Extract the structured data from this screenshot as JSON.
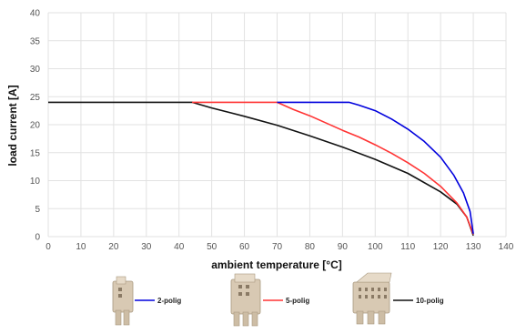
{
  "chart_data": {
    "type": "line",
    "title": "",
    "xlabel": "ambient temperature [°C]",
    "ylabel": "load current [A]",
    "xlim": [
      0,
      140
    ],
    "ylim": [
      0,
      40
    ],
    "x_ticks": [
      0,
      10,
      20,
      30,
      40,
      50,
      60,
      70,
      80,
      90,
      100,
      110,
      120,
      130,
      140
    ],
    "y_ticks": [
      0,
      5,
      10,
      15,
      20,
      25,
      30,
      35,
      40
    ],
    "grid": true,
    "legend_position": "bottom",
    "series": [
      {
        "name": "2-polig",
        "color": "#0000dd",
        "points": [
          [
            70,
            24
          ],
          [
            92,
            24
          ],
          [
            95,
            23.5
          ],
          [
            100,
            22.5
          ],
          [
            105,
            21.0
          ],
          [
            110,
            19.2
          ],
          [
            115,
            17.0
          ],
          [
            120,
            14.2
          ],
          [
            124,
            11.0
          ],
          [
            127,
            7.8
          ],
          [
            129,
            4.5
          ],
          [
            130,
            0.5
          ]
        ]
      },
      {
        "name": "5-polig",
        "color": "#ff3333",
        "points": [
          [
            44,
            24
          ],
          [
            70,
            24
          ],
          [
            75,
            22.7
          ],
          [
            80,
            21.6
          ],
          [
            85,
            20.3
          ],
          [
            90,
            19.0
          ],
          [
            95,
            17.8
          ],
          [
            100,
            16.4
          ],
          [
            105,
            14.9
          ],
          [
            110,
            13.2
          ],
          [
            115,
            11.3
          ],
          [
            120,
            9.0
          ],
          [
            125,
            6.0
          ],
          [
            128,
            3.5
          ],
          [
            130,
            0.4
          ]
        ]
      },
      {
        "name": "10-polig",
        "color": "#111111",
        "points": [
          [
            0,
            24
          ],
          [
            44,
            24
          ],
          [
            50,
            23.0
          ],
          [
            60,
            21.5
          ],
          [
            70,
            19.9
          ],
          [
            80,
            18.0
          ],
          [
            90,
            16.0
          ],
          [
            100,
            13.8
          ],
          [
            110,
            11.3
          ],
          [
            120,
            8.0
          ],
          [
            125,
            5.8
          ],
          [
            128,
            3.5
          ],
          [
            130,
            0.2
          ]
        ]
      }
    ]
  }
}
